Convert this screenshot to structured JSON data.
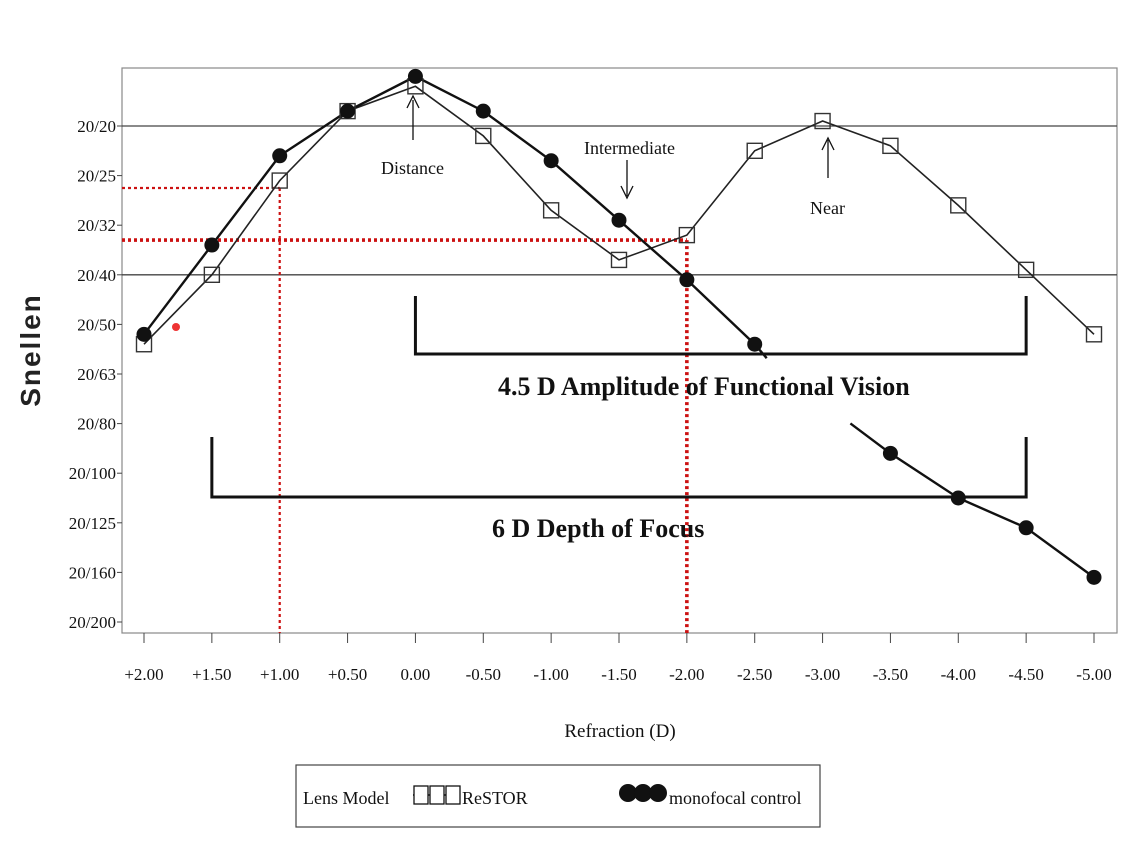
{
  "chart_data": {
    "type": "line",
    "ylabel": "Snellen",
    "xlabel": "Refraction (D)",
    "x_ticks": [
      2.0,
      1.5,
      1.0,
      0.5,
      0.0,
      -0.5,
      -1.0,
      -1.5,
      -2.0,
      -2.5,
      -3.0,
      -3.5,
      -4.0,
      -4.5,
      -5.0
    ],
    "x_tick_labels": [
      "+2.00",
      "+1.50",
      "+1.00",
      "+0.50",
      "0.00",
      "-0.50",
      "-1.00",
      "-1.50",
      "-2.00",
      "-2.50",
      "-3.00",
      "-3.50",
      "-4.00",
      "-4.50",
      "-5.00"
    ],
    "x_range": [
      2.0,
      -5.0
    ],
    "y_axis_note": "logMAR scale: 20/20 = 0.0, 20/200 = 1.0 (shown as Snellen fractions, better acuity at top)",
    "y_ticks": [
      0.0,
      0.1,
      0.2,
      0.3,
      0.4,
      0.5,
      0.6,
      0.7,
      0.8,
      0.9,
      1.0
    ],
    "y_tick_labels": [
      "20/20",
      "20/25",
      "20/32",
      "20/40",
      "20/50",
      "20/63",
      "20/80",
      "20/100",
      "20/125",
      "20/160",
      "20/200"
    ],
    "y_range": [
      -0.12,
      1.02
    ],
    "reference_lines": [
      0.0,
      0.3
    ],
    "series": [
      {
        "name": "ReSTOR",
        "marker": "square",
        "x": [
          2.0,
          1.5,
          1.0,
          0.5,
          0.0,
          -0.5,
          -1.0,
          -1.5,
          -2.0,
          -2.5,
          -3.0,
          -3.5,
          -4.0,
          -4.5,
          -5.0
        ],
        "y": [
          0.44,
          0.3,
          0.11,
          -0.03,
          -0.08,
          0.02,
          0.17,
          0.27,
          0.22,
          0.05,
          -0.01,
          0.04,
          0.16,
          0.29,
          0.42
        ]
      },
      {
        "name": "monofocal control",
        "marker": "filled-circle",
        "x": [
          2.0,
          1.5,
          1.0,
          0.5,
          0.0,
          -0.5,
          -1.0,
          -1.5,
          -2.0,
          -2.5,
          -3.5,
          -4.0,
          -4.5,
          -5.0
        ],
        "y": [
          0.42,
          0.24,
          0.06,
          -0.03,
          -0.1,
          -0.03,
          0.07,
          0.19,
          0.31,
          0.44,
          0.66,
          0.75,
          0.81,
          0.91
        ]
      }
    ],
    "guide_lines": [
      {
        "x": 1.0,
        "y": 0.125
      },
      {
        "x": -2.0,
        "y": 0.23
      }
    ],
    "annotations": {
      "distance": "Distance",
      "intermediate": "Intermediate",
      "near": "Near",
      "amplitude": "4.5 D Amplitude of Functional Vision",
      "depth": "6 D Depth of Focus"
    },
    "amplitude_range": [
      0.0,
      -4.5
    ],
    "depth_range": [
      1.5,
      -4.5
    ],
    "legend": {
      "title": "Lens Model",
      "entries": [
        "ReSTOR",
        "monofocal control"
      ],
      "placement": "bottom"
    }
  }
}
